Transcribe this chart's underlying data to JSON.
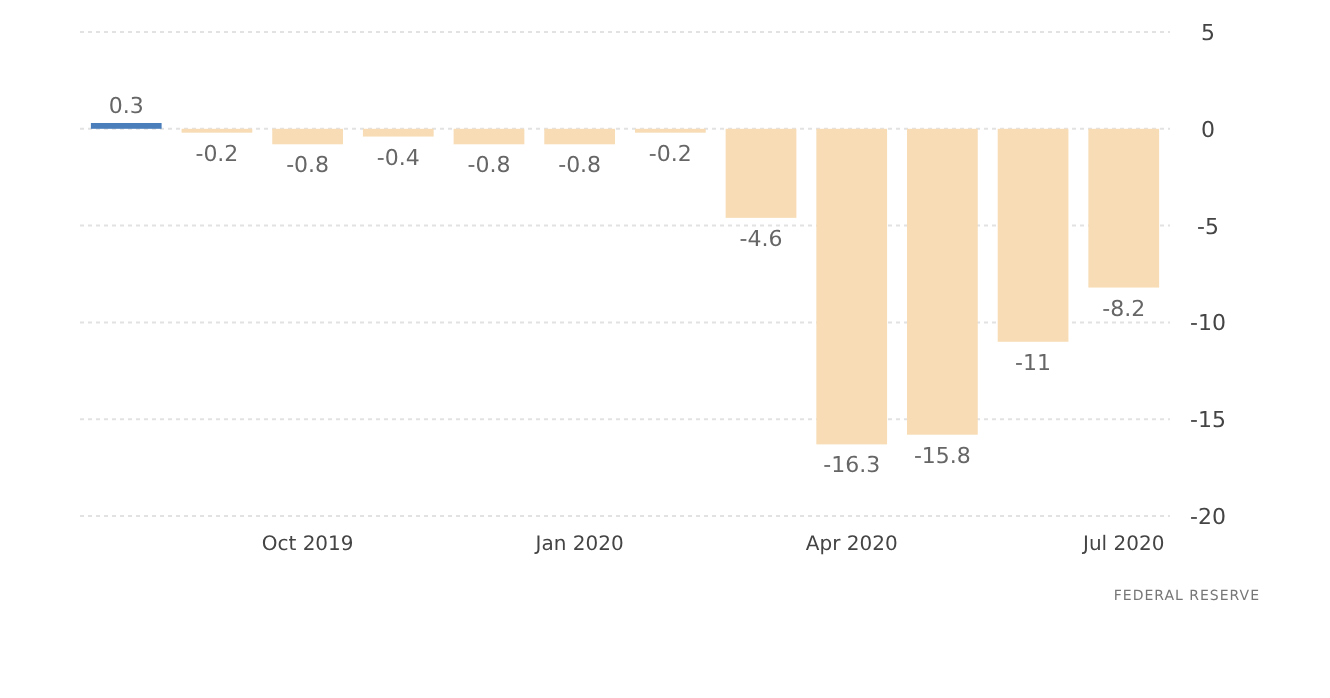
{
  "chart_data": {
    "type": "bar",
    "categories": [
      null,
      null,
      "Oct 2019",
      null,
      null,
      "Jan 2020",
      null,
      null,
      "Apr 2020",
      null,
      null,
      "Jul 2020"
    ],
    "values": [
      0.3,
      -0.2,
      -0.8,
      -0.4,
      -0.8,
      -0.8,
      -0.2,
      -4.6,
      -16.3,
      -15.8,
      -11,
      -8.2
    ],
    "colors": [
      "#4a7ebb",
      "#f7dcb5",
      "#f7dcb5",
      "#f7dcb5",
      "#f7dcb5",
      "#f7dcb5",
      "#f7dcb5",
      "#f7dcb5",
      "#f7dcb5",
      "#f7dcb5",
      "#f7dcb5",
      "#f7dcb5"
    ],
    "ylim": [
      -20,
      5
    ],
    "yticks": [
      5,
      0,
      -5,
      -10,
      -15,
      -20
    ],
    "grid": "y",
    "data_labels": true,
    "annotations": [
      "FEDERAL RESERVE"
    ]
  }
}
